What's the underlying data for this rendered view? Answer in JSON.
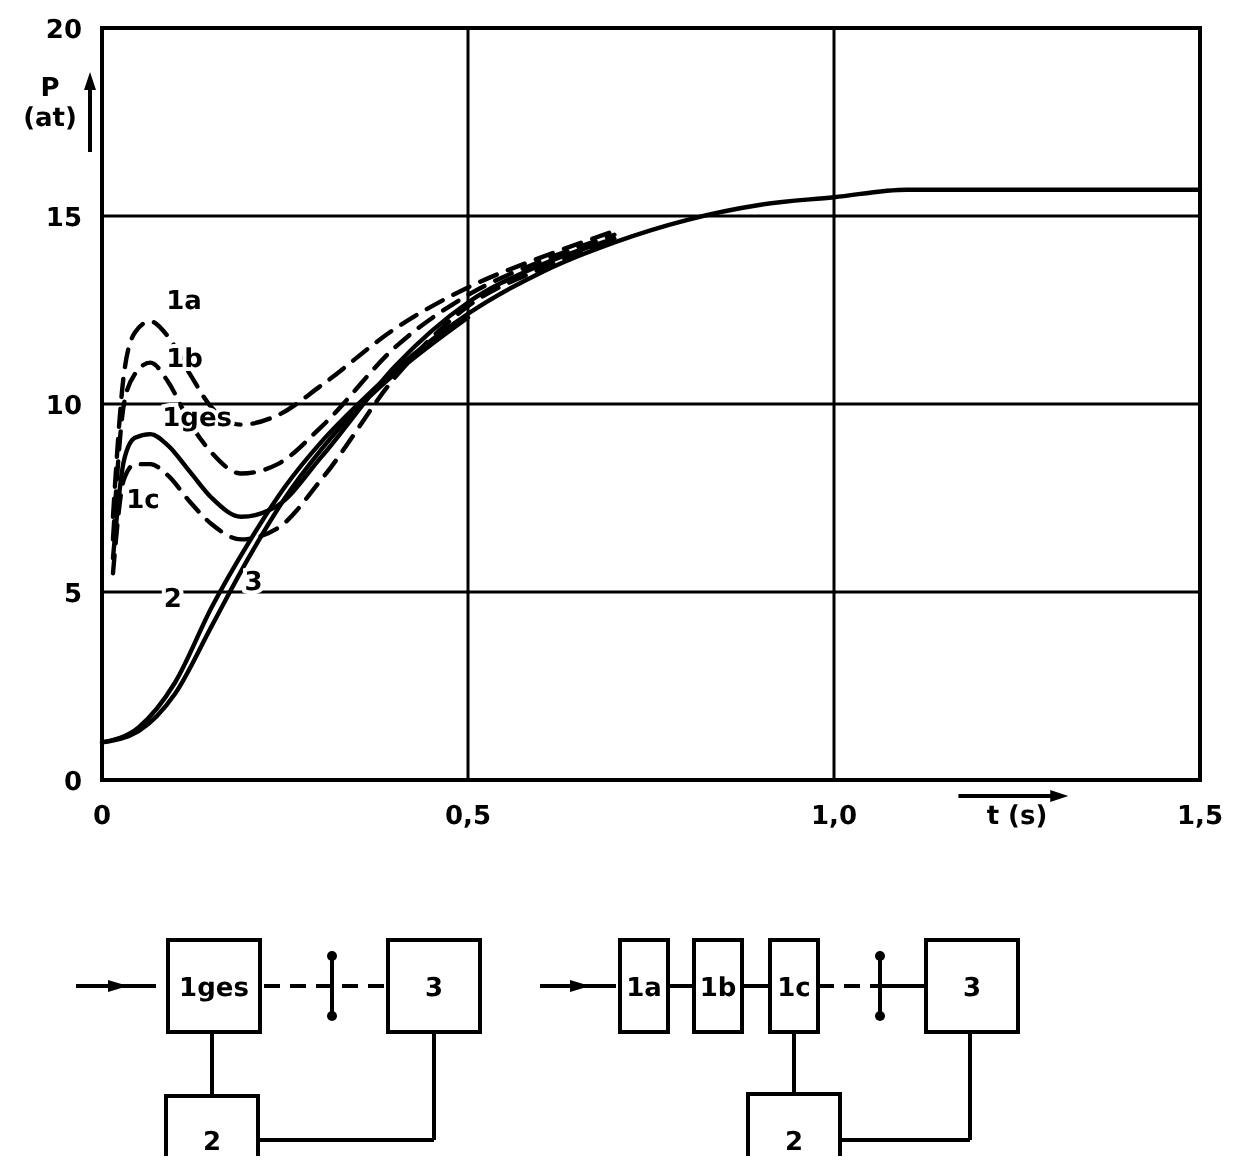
{
  "chart_data": {
    "type": "line",
    "xlabel": "t (s)",
    "ylabel": "P (at)",
    "xlim": [
      0,
      1.5
    ],
    "ylim": [
      0,
      20
    ],
    "xticks": [
      0,
      {
        "value": 0.5,
        "label": "0,5"
      },
      {
        "value": 1.0,
        "label": "1,0"
      },
      {
        "value": 1.5,
        "label": "1,5"
      }
    ],
    "yticks": [
      0,
      5,
      10,
      15,
      20
    ],
    "grid": true,
    "series": [
      {
        "name": "1a",
        "color": "#000000",
        "line_style": "dashed",
        "x": [
          0.015,
          0.03,
          0.045,
          0.066,
          0.09,
          0.12,
          0.15,
          0.19,
          0.24,
          0.3,
          0.4,
          0.5,
          0.6,
          0.7
        ],
        "values": [
          7,
          10.8,
          11.9,
          12.2,
          11.8,
          10.8,
          9.9,
          9.45,
          9.7,
          10.5,
          12.0,
          13.1,
          13.9,
          14.6
        ]
      },
      {
        "name": "1b",
        "color": "#000000",
        "line_style": "dashed",
        "x": [
          0.015,
          0.03,
          0.045,
          0.066,
          0.09,
          0.12,
          0.15,
          0.19,
          0.24,
          0.3,
          0.4,
          0.5,
          0.6,
          0.7
        ],
        "values": [
          6.4,
          10,
          10.8,
          11.1,
          10.6,
          9.5,
          8.7,
          8.15,
          8.4,
          9.4,
          11.5,
          12.9,
          13.8,
          14.5
        ]
      },
      {
        "name": "1ges",
        "color": "#000000",
        "line_style": "solid",
        "x": [
          0.015,
          0.03,
          0.045,
          0.066,
          0.09,
          0.12,
          0.15,
          0.19,
          0.24,
          0.3,
          0.4,
          0.5,
          0.6,
          0.7
        ],
        "values": [
          5.9,
          8.5,
          9.1,
          9.2,
          8.9,
          8.2,
          7.5,
          7.0,
          7.3,
          8.6,
          11.0,
          12.7,
          13.7,
          14.4
        ]
      },
      {
        "name": "1c",
        "color": "#000000",
        "line_style": "dashed",
        "x": [
          0.015,
          0.03,
          0.045,
          0.066,
          0.09,
          0.12,
          0.15,
          0.19,
          0.24,
          0.3,
          0.4,
          0.5,
          0.6,
          0.7
        ],
        "values": [
          5.5,
          8.0,
          8.4,
          8.4,
          8.1,
          7.4,
          6.8,
          6.4,
          6.7,
          8.0,
          10.7,
          12.6,
          13.6,
          14.35
        ]
      },
      {
        "name": "2",
        "color": "#000000",
        "line_style": "solid",
        "x": [
          0,
          0.05,
          0.1,
          0.15,
          0.2,
          0.25,
          0.3,
          0.35,
          0.4,
          0.5,
          0.6,
          0.7,
          0.8,
          0.9,
          1.0,
          1.1,
          1.2,
          1.5
        ],
        "values": [
          1,
          1.4,
          2.6,
          4.6,
          6.3,
          7.8,
          9.0,
          10.0,
          10.9,
          12.4,
          13.5,
          14.3,
          14.9,
          15.3,
          15.5,
          15.7,
          15.7,
          15.7
        ]
      },
      {
        "name": "3",
        "color": "#000000",
        "line_style": "solid",
        "x": [
          0,
          0.05,
          0.1,
          0.15,
          0.2,
          0.25,
          0.3,
          0.35,
          0.4,
          0.5
        ],
        "values": [
          1,
          1.3,
          2.3,
          4.1,
          5.9,
          7.5,
          8.8,
          9.9,
          10.8,
          12.3
        ]
      }
    ],
    "annotations": [
      "1ges",
      "3",
      "2",
      "1a",
      "1b",
      "1c",
      "3",
      "2"
    ]
  }
}
